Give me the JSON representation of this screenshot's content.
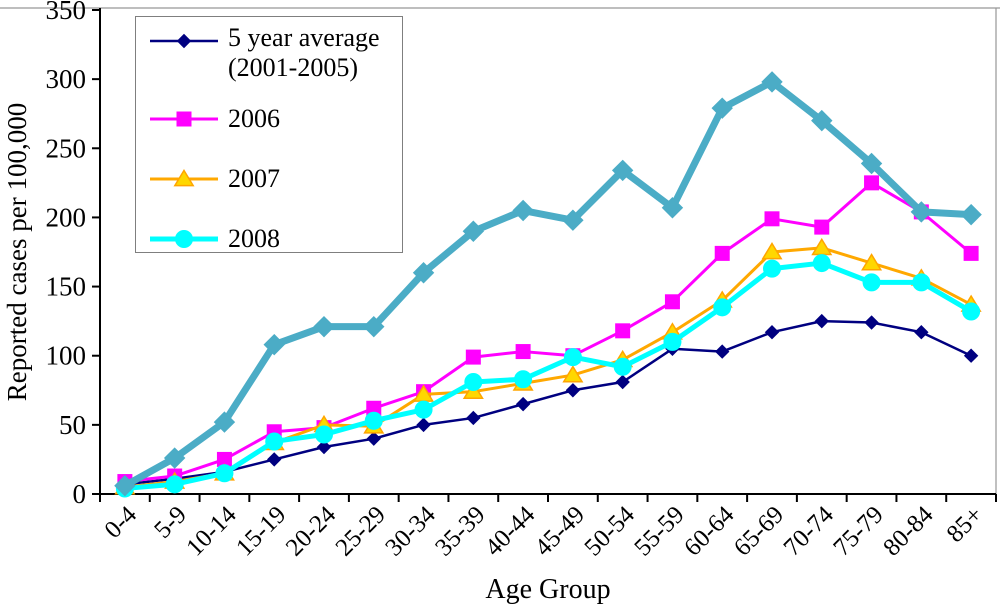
{
  "chart_data": {
    "type": "line",
    "title": "",
    "xlabel": "Age Group",
    "ylabel": "Reported cases per 100,000",
    "ylim": [
      0,
      350
    ],
    "ytick_step": 50,
    "grid": false,
    "legend_position": "top-left-inside",
    "categories": [
      "0-4",
      "5-9",
      "10-14",
      "15-19",
      "20-24",
      "25-29",
      "30-34",
      "35-39",
      "40-44",
      "45-49",
      "50-54",
      "55-59",
      "60-64",
      "65-69",
      "70-74",
      "75-79",
      "80-84",
      "85+"
    ],
    "series": [
      {
        "name": "5 year average (2001-2005)",
        "in_legend": true,
        "color": "#000080",
        "marker": "diamond",
        "marker_fill": "#000080",
        "marker_stroke": "#000080",
        "marker_size": 6.5,
        "line_width": 2.5,
        "values": [
          7,
          11,
          16,
          25,
          34,
          40,
          50,
          55,
          65,
          75,
          81,
          105,
          103,
          117,
          125,
          124,
          117,
          100
        ]
      },
      {
        "name": "2006",
        "in_legend": true,
        "color": "#FF00FF",
        "marker": "square",
        "marker_fill": "#FF00FF",
        "marker_stroke": "#FF00FF",
        "marker_size": 7,
        "line_width": 3,
        "values": [
          9,
          13,
          25,
          45,
          48,
          62,
          74,
          99,
          103,
          100,
          118,
          139,
          174,
          199,
          193,
          225,
          204,
          174
        ]
      },
      {
        "name": "2007",
        "in_legend": true,
        "color": "#FFA800",
        "marker": "triangle",
        "marker_fill": "#FFD700",
        "marker_stroke": "#FFA500",
        "marker_size": 8.5,
        "line_width": 3,
        "values": [
          5,
          9,
          15,
          37,
          50,
          49,
          72,
          74,
          80,
          86,
          97,
          117,
          140,
          175,
          178,
          167,
          156,
          137
        ]
      },
      {
        "name": "2008",
        "in_legend": true,
        "color": "#00FFFF",
        "marker": "circle",
        "marker_fill": "#00FFFF",
        "marker_stroke": "#00FFFF",
        "marker_size": 8.5,
        "line_width": 5,
        "values": [
          4,
          7,
          15,
          38,
          43,
          53,
          61,
          81,
          83,
          99,
          92,
          110,
          135,
          163,
          167,
          153,
          153,
          132
        ]
      },
      {
        "name": "",
        "in_legend": false,
        "color": "#4BACC6",
        "marker": "diamond",
        "marker_fill": "#4BACC6",
        "marker_stroke": "#4BACC6",
        "marker_size": 10,
        "line_width": 7,
        "values": [
          6,
          26,
          52,
          108,
          121,
          121,
          160,
          190,
          205,
          198,
          234,
          207,
          279,
          298,
          270,
          239,
          204,
          202
        ]
      }
    ]
  },
  "legend": {
    "items": [
      {
        "label": "5 year average",
        "label2": "(2001-2005)"
      },
      {
        "label": "2006",
        "label2": ""
      },
      {
        "label": "2007",
        "label2": ""
      },
      {
        "label": "2008",
        "label2": ""
      }
    ]
  },
  "axes": {
    "y_title": "Reported cases per 100,000",
    "x_title": "Age Group"
  },
  "colors": {
    "axis_line": "#000000",
    "plot_border": "#969696",
    "text": "#000000"
  }
}
